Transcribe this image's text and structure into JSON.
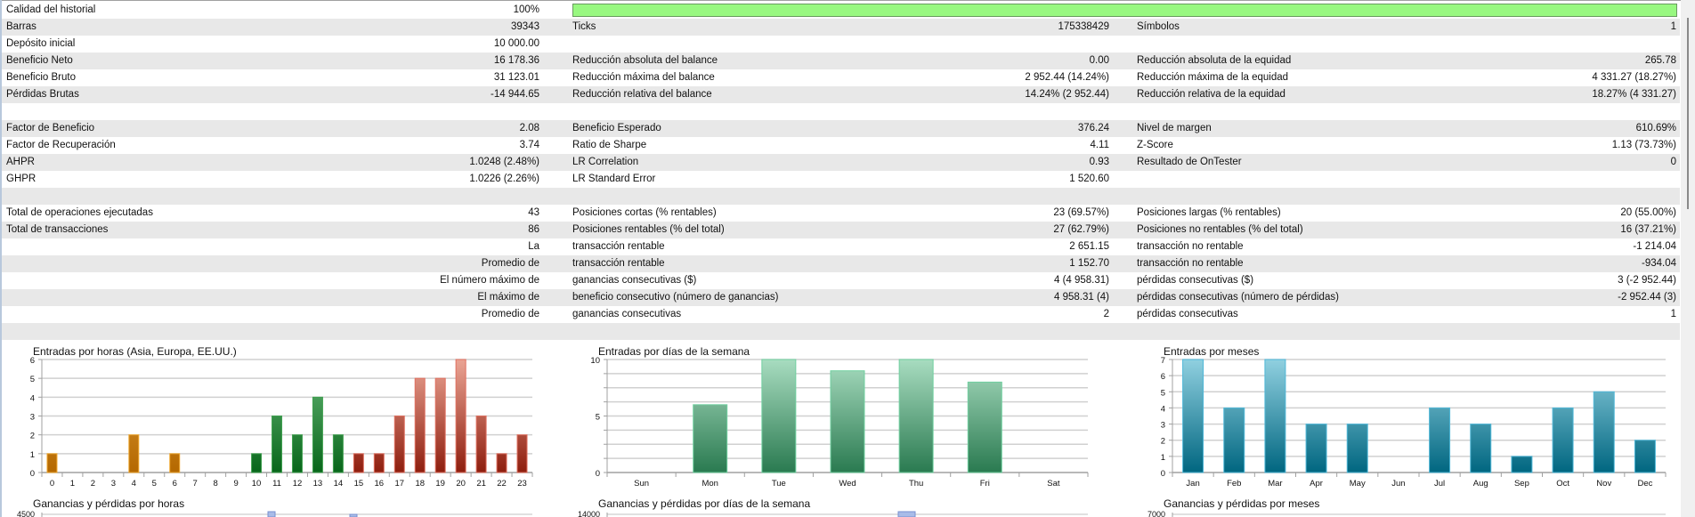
{
  "quality": {
    "label": "Calidad del historial",
    "value": "100%",
    "fill_percent": 100,
    "color": "#98f880"
  },
  "rows": [
    [
      "Calidad del historial",
      "100%",
      "",
      "",
      "",
      ""
    ],
    [
      "Barras",
      "39343",
      "Ticks",
      "175338429",
      "Símbolos",
      "1"
    ],
    [
      "Depósito inicial",
      "10 000.00",
      "",
      "",
      "",
      ""
    ],
    [
      "Beneficio Neto",
      "16 178.36",
      "Reducción absoluta del balance",
      "0.00",
      "Reducción absoluta de la equidad",
      "265.78"
    ],
    [
      "Beneficio Bruto",
      "31 123.01",
      "Reducción máxima del balance",
      "2 952.44 (14.24%)",
      "Reducción máxima de la equidad",
      "4 331.27 (18.27%)"
    ],
    [
      "Pérdidas Brutas",
      "-14 944.65",
      "Reducción relativa del balance",
      "14.24% (2 952.44)",
      "Reducción relativa de la equidad",
      "18.27% (4 331.27)"
    ],
    [
      "",
      "",
      "",
      "",
      "",
      ""
    ],
    [
      "Factor de Beneficio",
      "2.08",
      "Beneficio Esperado",
      "376.24",
      "Nivel de margen",
      "610.69%"
    ],
    [
      "Factor de Recuperación",
      "3.74",
      "Ratio de Sharpe",
      "4.11",
      "Z-Score",
      "1.13 (73.73%)"
    ],
    [
      "AHPR",
      "1.0248 (2.48%)",
      "LR Correlation",
      "0.93",
      "Resultado de OnTester",
      "0"
    ],
    [
      "GHPR",
      "1.0226 (2.26%)",
      "LR Standard Error",
      "1 520.60",
      "",
      ""
    ],
    [
      "",
      "",
      "",
      "",
      "",
      ""
    ],
    [
      "Total de operaciones ejecutadas",
      "43",
      "Posiciones cortas (% rentables)",
      "23 (69.57%)",
      "Posiciones largas (% rentables)",
      "20 (55.00%)"
    ],
    [
      "Total de transacciones",
      "86",
      "Posiciones rentables (% del total)",
      "27 (62.79%)",
      "Posiciones no rentables (% del total)",
      "16 (37.21%)"
    ],
    [
      "",
      "La",
      "transacción rentable",
      "2 651.15",
      "transacción no rentable",
      "-1 214.04"
    ],
    [
      "",
      "Promedio de",
      "transacción rentable",
      "1 152.70",
      "transacción no rentable",
      "-934.04"
    ],
    [
      "",
      "El número máximo de",
      "ganancias consecutivas ($)",
      "4 (4 958.31)",
      "pérdidas consecutivas ($)",
      "3 (-2 952.44)"
    ],
    [
      "",
      "El máximo de",
      "beneficio consecutivo (número de ganancias)",
      "4 958.31 (4)",
      "pérdidas consecutivas (número de pérdidas)",
      "-2 952.44 (3)"
    ],
    [
      "",
      "Promedio de",
      "ganancias consecutivas",
      "2",
      "pérdidas consecutivas",
      "1"
    ],
    [
      "",
      "",
      "",
      "",
      "",
      ""
    ]
  ],
  "chart_data": [
    {
      "type": "bar",
      "title": "Entradas por horas (Asia, Europa, EE.UU.)",
      "categories": [
        "0",
        "1",
        "2",
        "3",
        "4",
        "5",
        "6",
        "7",
        "8",
        "9",
        "10",
        "11",
        "12",
        "13",
        "14",
        "15",
        "16",
        "17",
        "18",
        "19",
        "20",
        "21",
        "22",
        "23"
      ],
      "values": [
        1,
        0,
        0,
        0,
        2,
        0,
        1,
        0,
        0,
        0,
        1,
        3,
        2,
        4,
        2,
        1,
        1,
        3,
        5,
        5,
        6,
        3,
        1,
        2
      ],
      "groups": [
        "asia",
        "asia",
        "asia",
        "asia",
        "asia",
        "asia",
        "asia",
        "asia",
        "asia",
        "asia",
        "europe",
        "europe",
        "europe",
        "europe",
        "europe",
        "usa",
        "usa",
        "usa",
        "usa",
        "usa",
        "usa",
        "usa",
        "usa",
        "usa"
      ],
      "colors": {
        "asia": [
          "#e0a040",
          "#b46800",
          "#f0a830"
        ],
        "europe": [
          "#68b878",
          "#08661a",
          "#40a050"
        ],
        "usa": [
          "#eaa494",
          "#8e1e0e",
          "#e07060"
        ]
      },
      "ylim": [
        0,
        6
      ],
      "yticks": [
        0,
        1,
        2,
        3,
        4,
        5,
        6
      ],
      "ylabels": [
        "0",
        "1",
        "2",
        "3",
        "4",
        "5",
        "6"
      ],
      "grid": true
    },
    {
      "type": "bar",
      "title": "Entradas por días de la semana",
      "categories": [
        "Sun",
        "Mon",
        "Tue",
        "Wed",
        "Thu",
        "Fri",
        "Sat"
      ],
      "values": [
        0,
        6,
        10,
        9,
        10,
        8,
        0
      ],
      "colors": {
        "all": [
          "#a8dcc0",
          "#2a7a50",
          "#70d0a0"
        ]
      },
      "ylim": [
        0,
        10
      ],
      "yticks": [
        0,
        1.25,
        2.5,
        3.75,
        5,
        6.25,
        7.5,
        8.75,
        10
      ],
      "ylabels": [
        "0",
        "",
        "",
        "",
        "5",
        "",
        "",
        "",
        "10"
      ],
      "grid": true
    },
    {
      "type": "bar",
      "title": "Entradas por meses",
      "categories": [
        "Jan",
        "Feb",
        "Mar",
        "Apr",
        "May",
        "Jun",
        "Jul",
        "Aug",
        "Sep",
        "Oct",
        "Nov",
        "Dec"
      ],
      "values": [
        7,
        4,
        7,
        3,
        3,
        0,
        4,
        3,
        1,
        4,
        5,
        2
      ],
      "colors": {
        "all": [
          "#90d0e0",
          "#006680",
          "#50b8d8"
        ]
      },
      "ylim": [
        0,
        7
      ],
      "yticks": [
        0,
        1,
        2,
        3,
        4,
        5,
        6,
        7
      ],
      "ylabels": [
        "0",
        "1",
        "2",
        "3",
        "4",
        "5",
        "6",
        "7"
      ],
      "grid": true
    }
  ],
  "partial_charts": [
    {
      "title": "Ganancias y pérdidas por horas",
      "top_label": "4500"
    },
    {
      "title": "Ganancias y pérdidas por días de la semana",
      "top_label": "14000"
    },
    {
      "title": "Ganancias y pérdidas por meses",
      "top_label": "7000"
    }
  ]
}
